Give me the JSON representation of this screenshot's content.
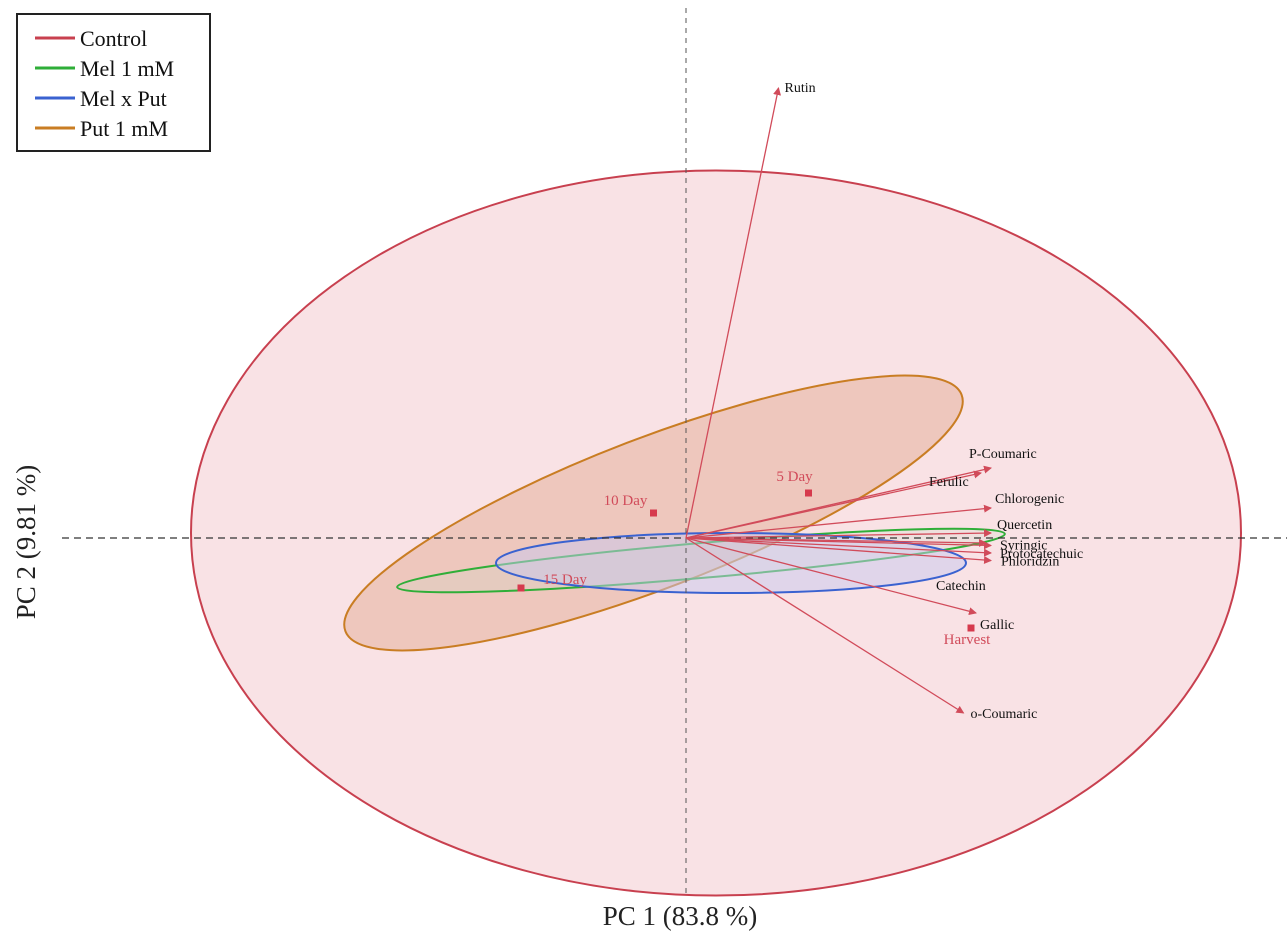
{
  "chart_data": {
    "type": "scatter",
    "subtype": "pca-biplot",
    "xlabel": "PC 1  (83.8 %)",
    "ylabel": "PC 2  (9.81 %)",
    "grid": false,
    "reference_lines": "dashed lines at x=0 and y=0",
    "legend_position": "top-left",
    "legend": [
      {
        "name": "Control",
        "color": "#c8404f"
      },
      {
        "name": "Mel 1 mM",
        "color": "#2fae38"
      },
      {
        "name": "Mel x Put",
        "color": "#3a62d0"
      },
      {
        "name": "Put 1 mM",
        "color": "#c97d23"
      }
    ],
    "observations": [
      {
        "label": "5 Day",
        "x": 0.49,
        "y": 0.18
      },
      {
        "label": "10 Day",
        "x": -0.13,
        "y": 0.1
      },
      {
        "label": "15 Day",
        "x": -0.66,
        "y": -0.2
      },
      {
        "label": "Harvest",
        "x": 1.14,
        "y": -0.36
      }
    ],
    "loadings": [
      {
        "label": "Rutin",
        "x": 0.37,
        "y": 1.8
      },
      {
        "label": "P-Coumaric",
        "x": 1.22,
        "y": 0.28
      },
      {
        "label": "Ferulic",
        "x": 1.18,
        "y": 0.26
      },
      {
        "label": "Chlorogenic",
        "x": 1.22,
        "y": 0.12
      },
      {
        "label": "Quercetin",
        "x": 1.22,
        "y": 0.02
      },
      {
        "label": "Syringic",
        "x": 1.22,
        "y": -0.03
      },
      {
        "label": "Protocatechuic",
        "x": 1.22,
        "y": -0.06
      },
      {
        "label": "Phloridzin",
        "x": 1.22,
        "y": -0.09
      },
      {
        "label": "Catechin",
        "x": 1.2,
        "y": -0.02
      },
      {
        "label": "Gallic",
        "x": 1.16,
        "y": -0.3
      },
      {
        "label": "o-Coumaric",
        "x": 1.11,
        "y": -0.7
      }
    ],
    "confidence_ellipses": [
      {
        "group": "Control",
        "cx": 0.12,
        "cy": 0.02,
        "rx": 2.1,
        "ry": 1.45,
        "angle_deg": 0
      },
      {
        "group": "Put 1 mM",
        "cx": -0.13,
        "cy": 0.1,
        "rx": 1.32,
        "ry": 0.3,
        "angle_deg": 21
      },
      {
        "group": "Mel 1 mM",
        "cx": 0.06,
        "cy": -0.09,
        "rx": 1.22,
        "ry": 0.07,
        "angle_deg": 5
      },
      {
        "group": "Mel x Put",
        "cx": 0.18,
        "cy": -0.1,
        "rx": 0.94,
        "ry": 0.12,
        "angle_deg": 0
      }
    ],
    "xlim": [
      -2.4,
      2.1
    ],
    "ylim": [
      -1.4,
      2.0
    ]
  }
}
